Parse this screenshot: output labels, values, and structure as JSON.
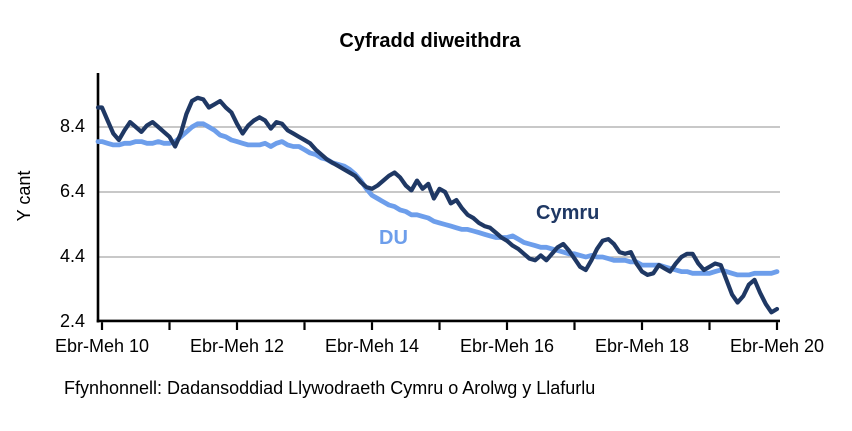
{
  "chart_data": {
    "type": "line",
    "title": "Cyfradd diweithdra",
    "ylabel": "Y cant",
    "xlabel": "",
    "ylim": [
      2.4,
      10.1
    ],
    "grid_on": true,
    "grid_values": [
      8.4,
      6.4,
      4.4
    ],
    "y_tick_labels": [
      "8.4",
      "6.4",
      "4.4",
      "2.4"
    ],
    "x_tick_labels": [
      "Ebr-Meh 10",
      "Ebr-Meh 12",
      "Ebr-Meh 14",
      "Ebr-Meh 16",
      "Ebr-Meh 18",
      "Ebr-Meh 20"
    ],
    "legend_position": "inline-annotation",
    "series": [
      {
        "name": "Cymru",
        "color": "#1F3864",
        "values": [
          9.0,
          8.6,
          8.2,
          8.0,
          8.3,
          8.55,
          8.4,
          8.25,
          8.45,
          8.55,
          8.4,
          8.25,
          8.1,
          7.8,
          8.2,
          8.8,
          9.2,
          9.3,
          9.25,
          9.0,
          9.1,
          9.2,
          9.0,
          8.85,
          8.5,
          8.2,
          8.45,
          8.6,
          8.7,
          8.6,
          8.35,
          8.55,
          8.5,
          8.3,
          8.2,
          8.1,
          8.0,
          7.9,
          7.7,
          7.55,
          7.4,
          7.3,
          7.2,
          7.1,
          7.0,
          6.9,
          6.7,
          6.55,
          6.5,
          6.6,
          6.75,
          6.9,
          7.0,
          6.85,
          6.6,
          6.45,
          6.75,
          6.5,
          6.65,
          6.2,
          6.5,
          6.4,
          6.05,
          6.15,
          5.9,
          5.7,
          5.6,
          5.45,
          5.35,
          5.3,
          5.15,
          5.0,
          4.9,
          4.75,
          4.65,
          4.5,
          4.35,
          4.3,
          4.45,
          4.3,
          4.5,
          4.7,
          4.8,
          4.6,
          4.35,
          4.1,
          4.0,
          4.3,
          4.65,
          4.9,
          4.95,
          4.8,
          4.55,
          4.5,
          4.55,
          4.2,
          3.95,
          3.85,
          3.9,
          4.15,
          4.05,
          3.95,
          4.2,
          4.4,
          4.5,
          4.5,
          4.2,
          4.0,
          4.1,
          4.2,
          4.15,
          3.7,
          3.25,
          3.0,
          3.2,
          3.55,
          3.7,
          3.3,
          2.95,
          2.7,
          2.8
        ]
      },
      {
        "name": "DU",
        "color": "#6D9EEB",
        "values": [
          7.95,
          7.9,
          7.85,
          7.85,
          7.9,
          7.9,
          7.95,
          7.95,
          7.9,
          7.9,
          7.95,
          7.9,
          7.9,
          7.95,
          8.1,
          8.25,
          8.4,
          8.5,
          8.5,
          8.4,
          8.3,
          8.15,
          8.1,
          8.0,
          7.95,
          7.9,
          7.85,
          7.85,
          7.85,
          7.9,
          7.8,
          7.9,
          7.95,
          7.85,
          7.8,
          7.8,
          7.7,
          7.6,
          7.55,
          7.45,
          7.4,
          7.3,
          7.25,
          7.2,
          7.1,
          6.95,
          6.75,
          6.5,
          6.3,
          6.2,
          6.1,
          6.0,
          5.95,
          5.85,
          5.8,
          5.7,
          5.7,
          5.65,
          5.6,
          5.5,
          5.45,
          5.4,
          5.35,
          5.3,
          5.25,
          5.25,
          5.2,
          5.15,
          5.1,
          5.05,
          5.0,
          5.0,
          5.0,
          5.05,
          4.95,
          4.85,
          4.8,
          4.75,
          4.7,
          4.7,
          4.65,
          4.6,
          4.55,
          4.5,
          4.5,
          4.45,
          4.4,
          4.45,
          4.4,
          4.4,
          4.35,
          4.3,
          4.3,
          4.3,
          4.25,
          4.25,
          4.15,
          4.15,
          4.15,
          4.15,
          4.1,
          4.05,
          4.0,
          3.95,
          3.95,
          3.9,
          3.9,
          3.9,
          3.9,
          3.95,
          4.0,
          3.95,
          3.9,
          3.85,
          3.85,
          3.85,
          3.9,
          3.9,
          3.9,
          3.9,
          3.95
        ]
      }
    ]
  },
  "source_note": "Ffynhonnell: Dadansoddiad Llywodraeth Cymru o Arolwg y Llafurlu",
  "colors": {
    "axis": "#000000",
    "gridline": "#A6A6A6",
    "background": "#FFFFFF"
  }
}
